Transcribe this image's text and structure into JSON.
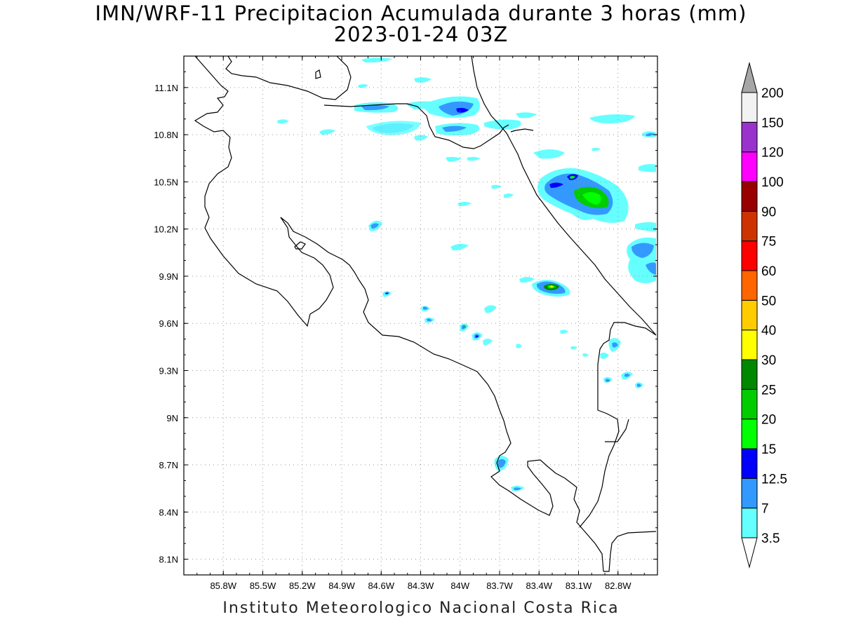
{
  "title_line1": "IMN/WRF-11 Precipitacion Acumulada durante 3 horas (mm)",
  "title_line2": "2023-01-24 03Z",
  "footer": "Instituto Meteorologico Nacional Costa Rica",
  "map": {
    "lon_range": [
      -86.1,
      -82.5
    ],
    "lat_range": [
      8.0,
      11.3
    ],
    "lon_ticks": [
      "85.8W",
      "85.5W",
      "85.2W",
      "84.9W",
      "84.6W",
      "84.3W",
      "84W",
      "83.7W",
      "83.4W",
      "83.1W",
      "82.8W"
    ],
    "lat_ticks": [
      "11.1N",
      "10.8N",
      "10.5N",
      "10.2N",
      "9.9N",
      "9.6N",
      "9.3N",
      "9N",
      "8.7N",
      "8.4N",
      "8.1N"
    ],
    "gridlines": "dotted"
  },
  "colorbar": {
    "labels": [
      "3.5",
      "7",
      "12.5",
      "15",
      "20",
      "25",
      "30",
      "40",
      "50",
      "60",
      "75",
      "90",
      "100",
      "120",
      "150",
      "200"
    ],
    "colors": [
      "#66ffff",
      "#3399ff",
      "#0000ff",
      "#00ff00",
      "#00cc00",
      "#008800",
      "#ffff00",
      "#ffcc00",
      "#ff6600",
      "#ff0000",
      "#cc3300",
      "#990000",
      "#ff00ff",
      "#9933cc",
      "#f2f2f2"
    ],
    "arrow_top_color": "#a6a6a6",
    "arrow_bottom_color": "#ffffff"
  }
}
